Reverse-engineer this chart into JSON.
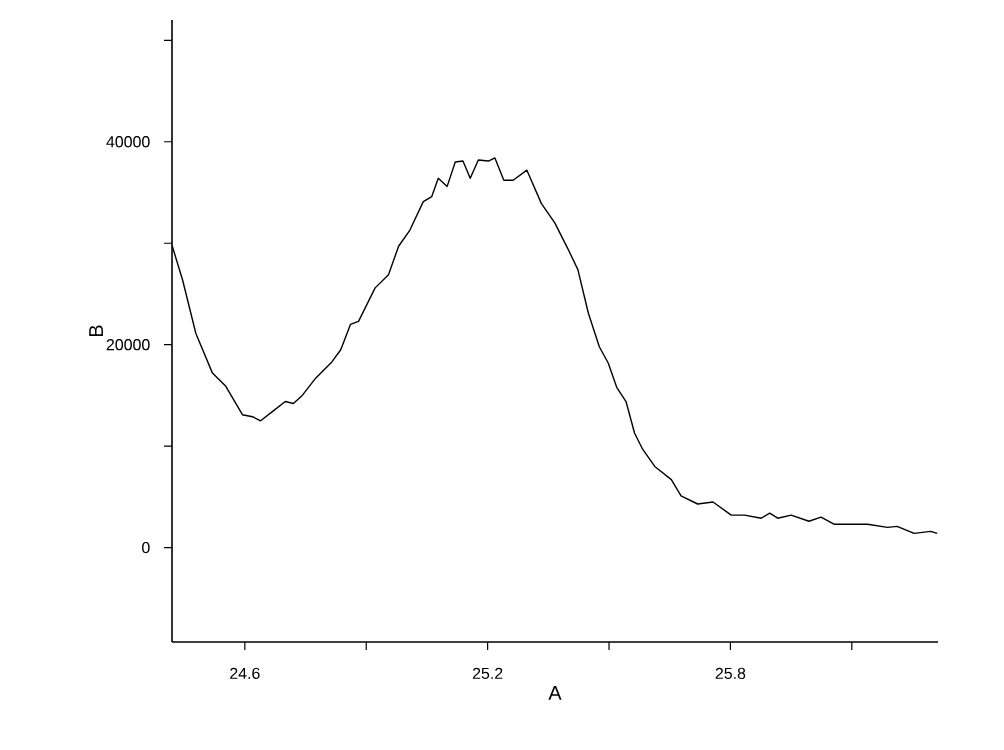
{
  "chart_data": {
    "type": "line",
    "xlabel": "A",
    "ylabel": "B",
    "color": "#000000",
    "xlim": [
      24.42,
      26.313
    ],
    "ylim": [
      -9300,
      52000
    ],
    "xticks": [
      24.6,
      {
        "value": 24.9,
        "label": null
      },
      25.2,
      {
        "value": 25.5,
        "label": null
      },
      25.8,
      {
        "value": 26.1,
        "label": null
      }
    ],
    "yticks": [
      0,
      {
        "value": 10000,
        "label": null
      },
      20000,
      {
        "value": 30000,
        "label": null
      },
      40000,
      {
        "value": 50000,
        "label": null
      }
    ],
    "grid": false,
    "x": [
      24.42,
      24.446,
      24.479,
      24.52,
      24.553,
      24.594,
      24.619,
      24.639,
      24.668,
      24.7,
      24.72,
      24.742,
      24.775,
      24.815,
      24.837,
      24.861,
      24.881,
      24.922,
      24.955,
      24.98,
      25.008,
      25.041,
      25.062,
      25.078,
      25.1,
      25.12,
      25.139,
      25.157,
      25.177,
      25.202,
      25.218,
      25.24,
      25.263,
      25.297,
      25.333,
      25.366,
      25.399,
      25.423,
      25.449,
      25.476,
      25.498,
      25.519,
      25.542,
      25.563,
      25.583,
      25.613,
      25.654,
      25.678,
      25.719,
      25.757,
      25.802,
      25.835,
      25.876,
      25.897,
      25.917,
      25.95,
      25.994,
      26.024,
      26.057,
      26.139,
      26.188,
      26.212,
      26.254,
      26.295,
      26.311
    ],
    "values": [
      29800,
      26400,
      21100,
      17200,
      15900,
      13100,
      12900,
      12500,
      13400,
      14400,
      14200,
      15000,
      16700,
      18300,
      19500,
      22000,
      22300,
      25600,
      26900,
      29700,
      31300,
      34100,
      34600,
      36400,
      35600,
      38000,
      38100,
      36400,
      38200,
      38100,
      38400,
      36200,
      36200,
      37200,
      33900,
      32000,
      29400,
      27400,
      23100,
      19800,
      18200,
      15800,
      14400,
      11300,
      9700,
      8000,
      6700,
      5100,
      4300,
      4500,
      3200,
      3200,
      2900,
      3400,
      2900,
      3200,
      2600,
      3000,
      2300,
      2300,
      2000,
      2100,
      1400,
      1600,
      1400
    ]
  }
}
